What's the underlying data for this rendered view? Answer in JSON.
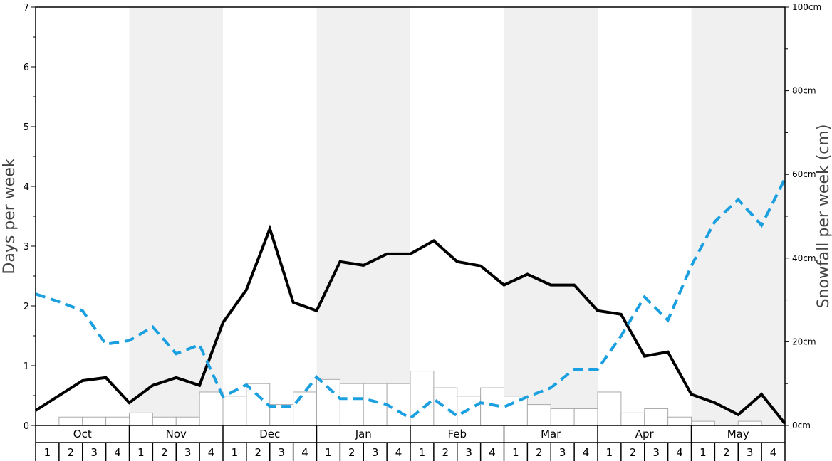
{
  "chart_data": {
    "type": "bar+line",
    "title": "",
    "ylabel_left": "Days per week",
    "ylabel_right": "Snowfall per week (cm)",
    "ylim_left": [
      0,
      7
    ],
    "ylim_right": [
      0,
      100
    ],
    "left_ticks": [
      "0",
      "1",
      "2",
      "3",
      "4",
      "5",
      "6",
      "7"
    ],
    "right_ticks": [
      "0cm",
      "20cm",
      "40cm",
      "60cm",
      "80cm",
      "100cm"
    ],
    "months": [
      "Oct",
      "Nov",
      "Dec",
      "Jan",
      "Feb",
      "Mar",
      "Apr",
      "May"
    ],
    "weeks": [
      "1",
      "2",
      "3",
      "4"
    ],
    "snowfall_bars_cm": [
      0,
      2,
      2,
      2,
      3,
      2,
      2,
      8,
      7,
      10,
      5,
      8,
      11,
      10,
      10,
      10,
      13,
      9,
      7,
      9,
      7,
      5,
      4,
      4,
      8,
      3,
      4,
      2,
      1,
      0,
      1,
      0
    ],
    "series": [
      {
        "values": [
          0.25,
          0.5,
          0.75,
          0.8,
          0.38,
          0.67,
          0.8,
          0.67,
          1.72,
          2.27,
          3.29,
          2.06,
          1.92,
          2.74,
          2.68,
          2.87,
          2.87,
          3.09,
          2.74,
          2.67,
          2.35,
          2.53,
          2.35,
          2.35,
          1.92,
          1.86,
          1.16,
          1.23,
          0.52,
          0.38,
          0.18,
          0.52,
          0.03
        ],
        "style": "solid",
        "color": "#000000"
      },
      {
        "values": [
          2.2,
          2.07,
          1.92,
          1.36,
          1.42,
          1.65,
          1.2,
          1.35,
          0.48,
          0.68,
          0.32,
          0.32,
          0.81,
          0.45,
          0.45,
          0.35,
          0.12,
          0.44,
          0.16,
          0.38,
          0.31,
          0.48,
          0.63,
          0.94,
          0.94,
          1.5,
          2.15,
          1.76,
          2.67,
          3.41,
          3.78,
          3.35,
          4.13
        ],
        "style": "dashed",
        "color": "#1a9fe0"
      }
    ],
    "colors": {
      "band_shaded": "#f0f0f0",
      "bar_fill": "#ffffff",
      "bar_stroke": "#aaaaaa"
    }
  }
}
